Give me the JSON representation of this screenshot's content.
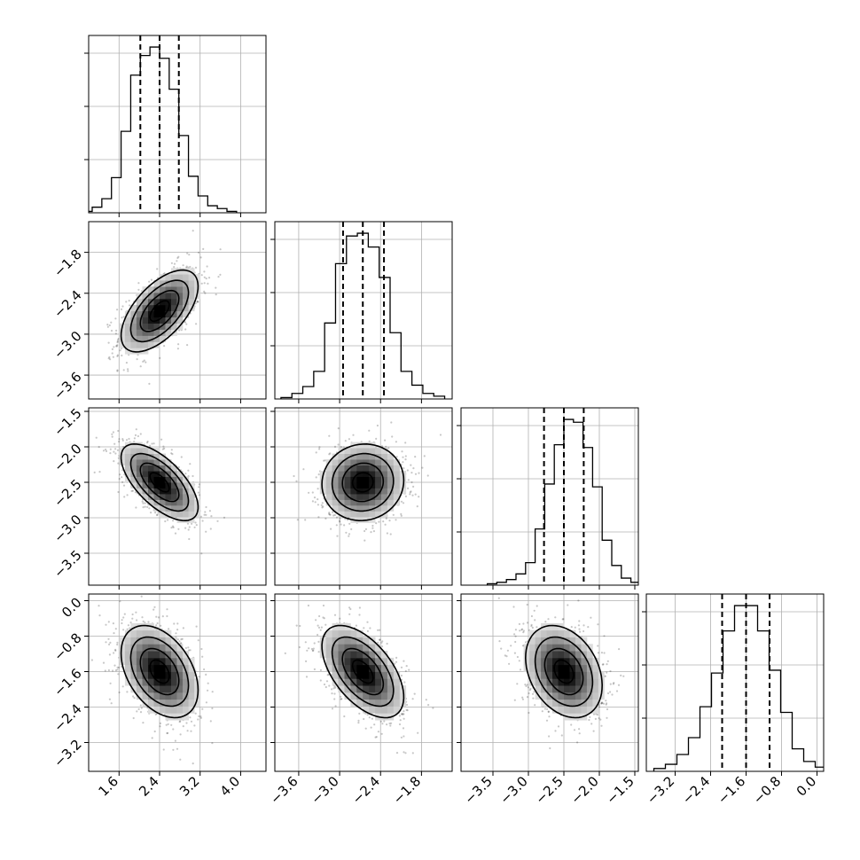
{
  "chart_data": {
    "type": "corner",
    "parameters": [
      {
        "range": [
          1.0,
          4.5
        ],
        "ticks": [
          1.6,
          2.4,
          3.2,
          4.0
        ],
        "tick_labels": [
          "1.6",
          "2.4",
          "3.2",
          "4.0"
        ],
        "mean": 2.4,
        "std": 0.38,
        "quantiles": [
          2.02,
          2.4,
          2.78
        ],
        "hist_counts": [
          1,
          4,
          10,
          25,
          58,
          98,
          112,
          118,
          110,
          88,
          55,
          26,
          12,
          5,
          3,
          1
        ]
      },
      {
        "range": [
          -3.95,
          -1.35
        ],
        "ticks": [
          -3.6,
          -3.0,
          -2.4,
          -1.8
        ],
        "tick_labels": [
          "−3.6",
          "−3.0",
          "−2.4",
          "−1.8"
        ],
        "mean": -2.66,
        "std": 0.3,
        "quantiles": [
          -2.95,
          -2.66,
          -2.35
        ],
        "hist_counts": [
          1,
          4,
          9,
          20,
          55,
          98,
          118,
          120,
          110,
          88,
          48,
          20,
          10,
          4,
          2
        ]
      },
      {
        "range": [
          -3.95,
          -1.45
        ],
        "ticks": [
          -3.5,
          -3.0,
          -2.5,
          -2.0,
          -1.5
        ],
        "tick_labels": [
          "−3.5",
          "−3.0",
          "−2.5",
          "−2.0",
          "−1.5"
        ],
        "mean": -2.5,
        "std": 0.27,
        "quantiles": [
          -2.78,
          -2.5,
          -2.22
        ],
        "hist_counts": [
          1,
          2,
          4,
          8,
          16,
          40,
          72,
          100,
          118,
          116,
          98,
          70,
          32,
          14,
          5,
          2
        ]
      },
      {
        "range": [
          -3.85,
          0.15
        ],
        "ticks": [
          -3.2,
          -2.4,
          -1.6,
          -0.8,
          0.0
        ],
        "tick_labels": [
          "−3.2",
          "−2.4",
          "−1.6",
          "−0.8",
          "0.0"
        ],
        "mean": -1.6,
        "std": 0.52,
        "quantiles": [
          -2.14,
          -1.6,
          -1.07
        ],
        "hist_counts": [
          2,
          5,
          12,
          24,
          46,
          70,
          100,
          118,
          118,
          100,
          72,
          42,
          16,
          7,
          3,
          1
        ]
      }
    ],
    "correlations": {
      "1,0": 0.6,
      "2,0": -0.65,
      "2,1": 0.05,
      "3,0": -0.4,
      "3,1": -0.55,
      "3,2": -0.3
    },
    "contour_levels_sigma": [
      0.5,
      1.0,
      1.5,
      2.0
    ],
    "quantile_line_style": "dashed",
    "grid": true
  }
}
